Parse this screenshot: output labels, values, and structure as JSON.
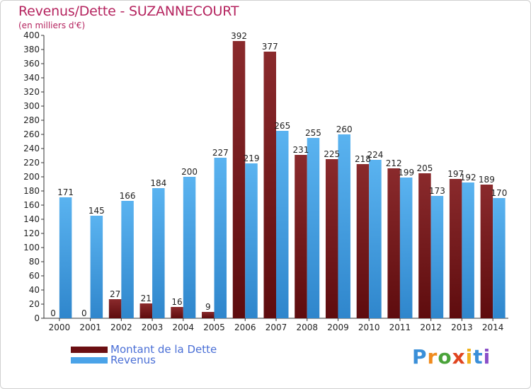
{
  "chart_data": {
    "type": "bar",
    "title": "Revenus/Dette - SUZANNECOURT",
    "subtitle": "(en milliers d'€)",
    "xlabel": "",
    "ylabel": "",
    "ylim": [
      0,
      400
    ],
    "ytick_step": 20,
    "grid": false,
    "categories": [
      "2000",
      "2001",
      "2002",
      "2003",
      "2004",
      "2005",
      "2006",
      "2007",
      "2008",
      "2009",
      "2010",
      "2011",
      "2012",
      "2013",
      "2014"
    ],
    "series": [
      {
        "name": "Montant de la Dette",
        "color": "#7a1c1e",
        "values": [
          0,
          0,
          27,
          21,
          16,
          9,
          392,
          377,
          231,
          225,
          218,
          212,
          205,
          197,
          189
        ]
      },
      {
        "name": "Revenus",
        "color": "#3d9be0",
        "values": [
          171,
          145,
          166,
          184,
          200,
          227,
          219,
          265,
          255,
          260,
          224,
          199,
          173,
          192,
          170
        ]
      }
    ],
    "legend_position": "bottom-left"
  },
  "legend": {
    "items": [
      {
        "label": "Montant de la Dette",
        "color": "#6b0f12"
      },
      {
        "label": "Revenus",
        "color": "#4aa3e8"
      }
    ]
  },
  "logo": {
    "letters": [
      "P",
      "r",
      "o",
      "x",
      "i",
      "t",
      "i"
    ],
    "colors": [
      "#3a8fd8",
      "#f08a1c",
      "#4aa33a",
      "#e0451f",
      "#f0b21c",
      "#3a8fd8",
      "#8a4fc8"
    ]
  }
}
